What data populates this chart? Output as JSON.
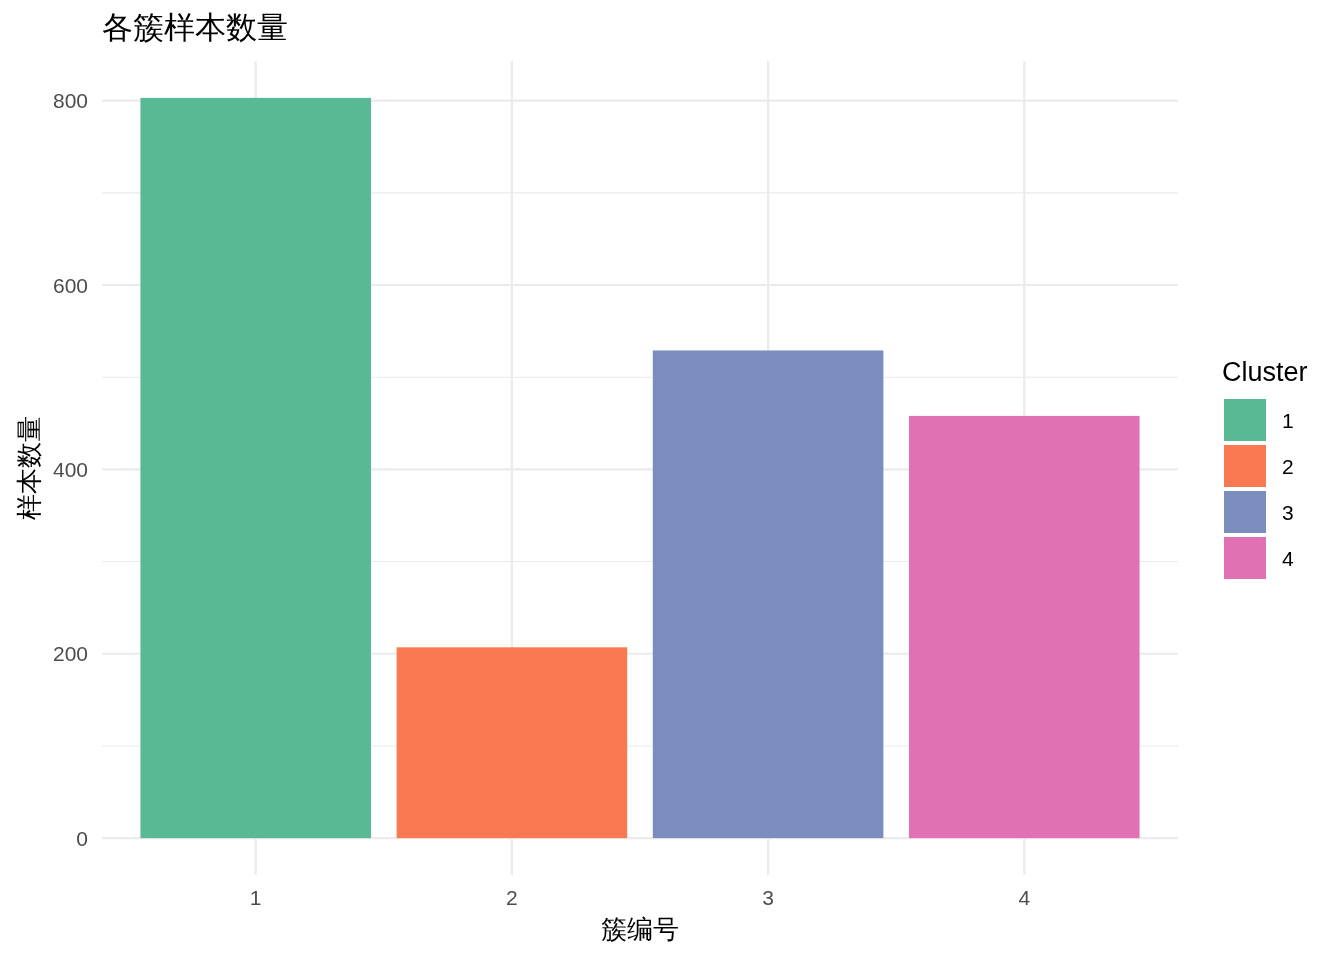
{
  "chart_data": {
    "type": "bar",
    "title": "各簇样本数量",
    "xlabel": "簇编号",
    "ylabel": "样本数量",
    "legend_title": "Cluster",
    "categories": [
      "1",
      "2",
      "3",
      "4"
    ],
    "series": [
      {
        "name": "1",
        "color": "#58b994",
        "values": [
          803,
          null,
          null,
          null
        ]
      },
      {
        "name": "2",
        "color": "#f97a52",
        "values": [
          null,
          207,
          null,
          null
        ]
      },
      {
        "name": "3",
        "color": "#7b8dbe",
        "values": [
          null,
          null,
          529,
          null
        ]
      },
      {
        "name": "4",
        "color": "#e072b4",
        "values": [
          null,
          null,
          null,
          458
        ]
      }
    ],
    "ylim": [
      -40,
      843
    ],
    "yticks": [
      0,
      200,
      400,
      600,
      800
    ],
    "grid": true,
    "legend": "right"
  }
}
